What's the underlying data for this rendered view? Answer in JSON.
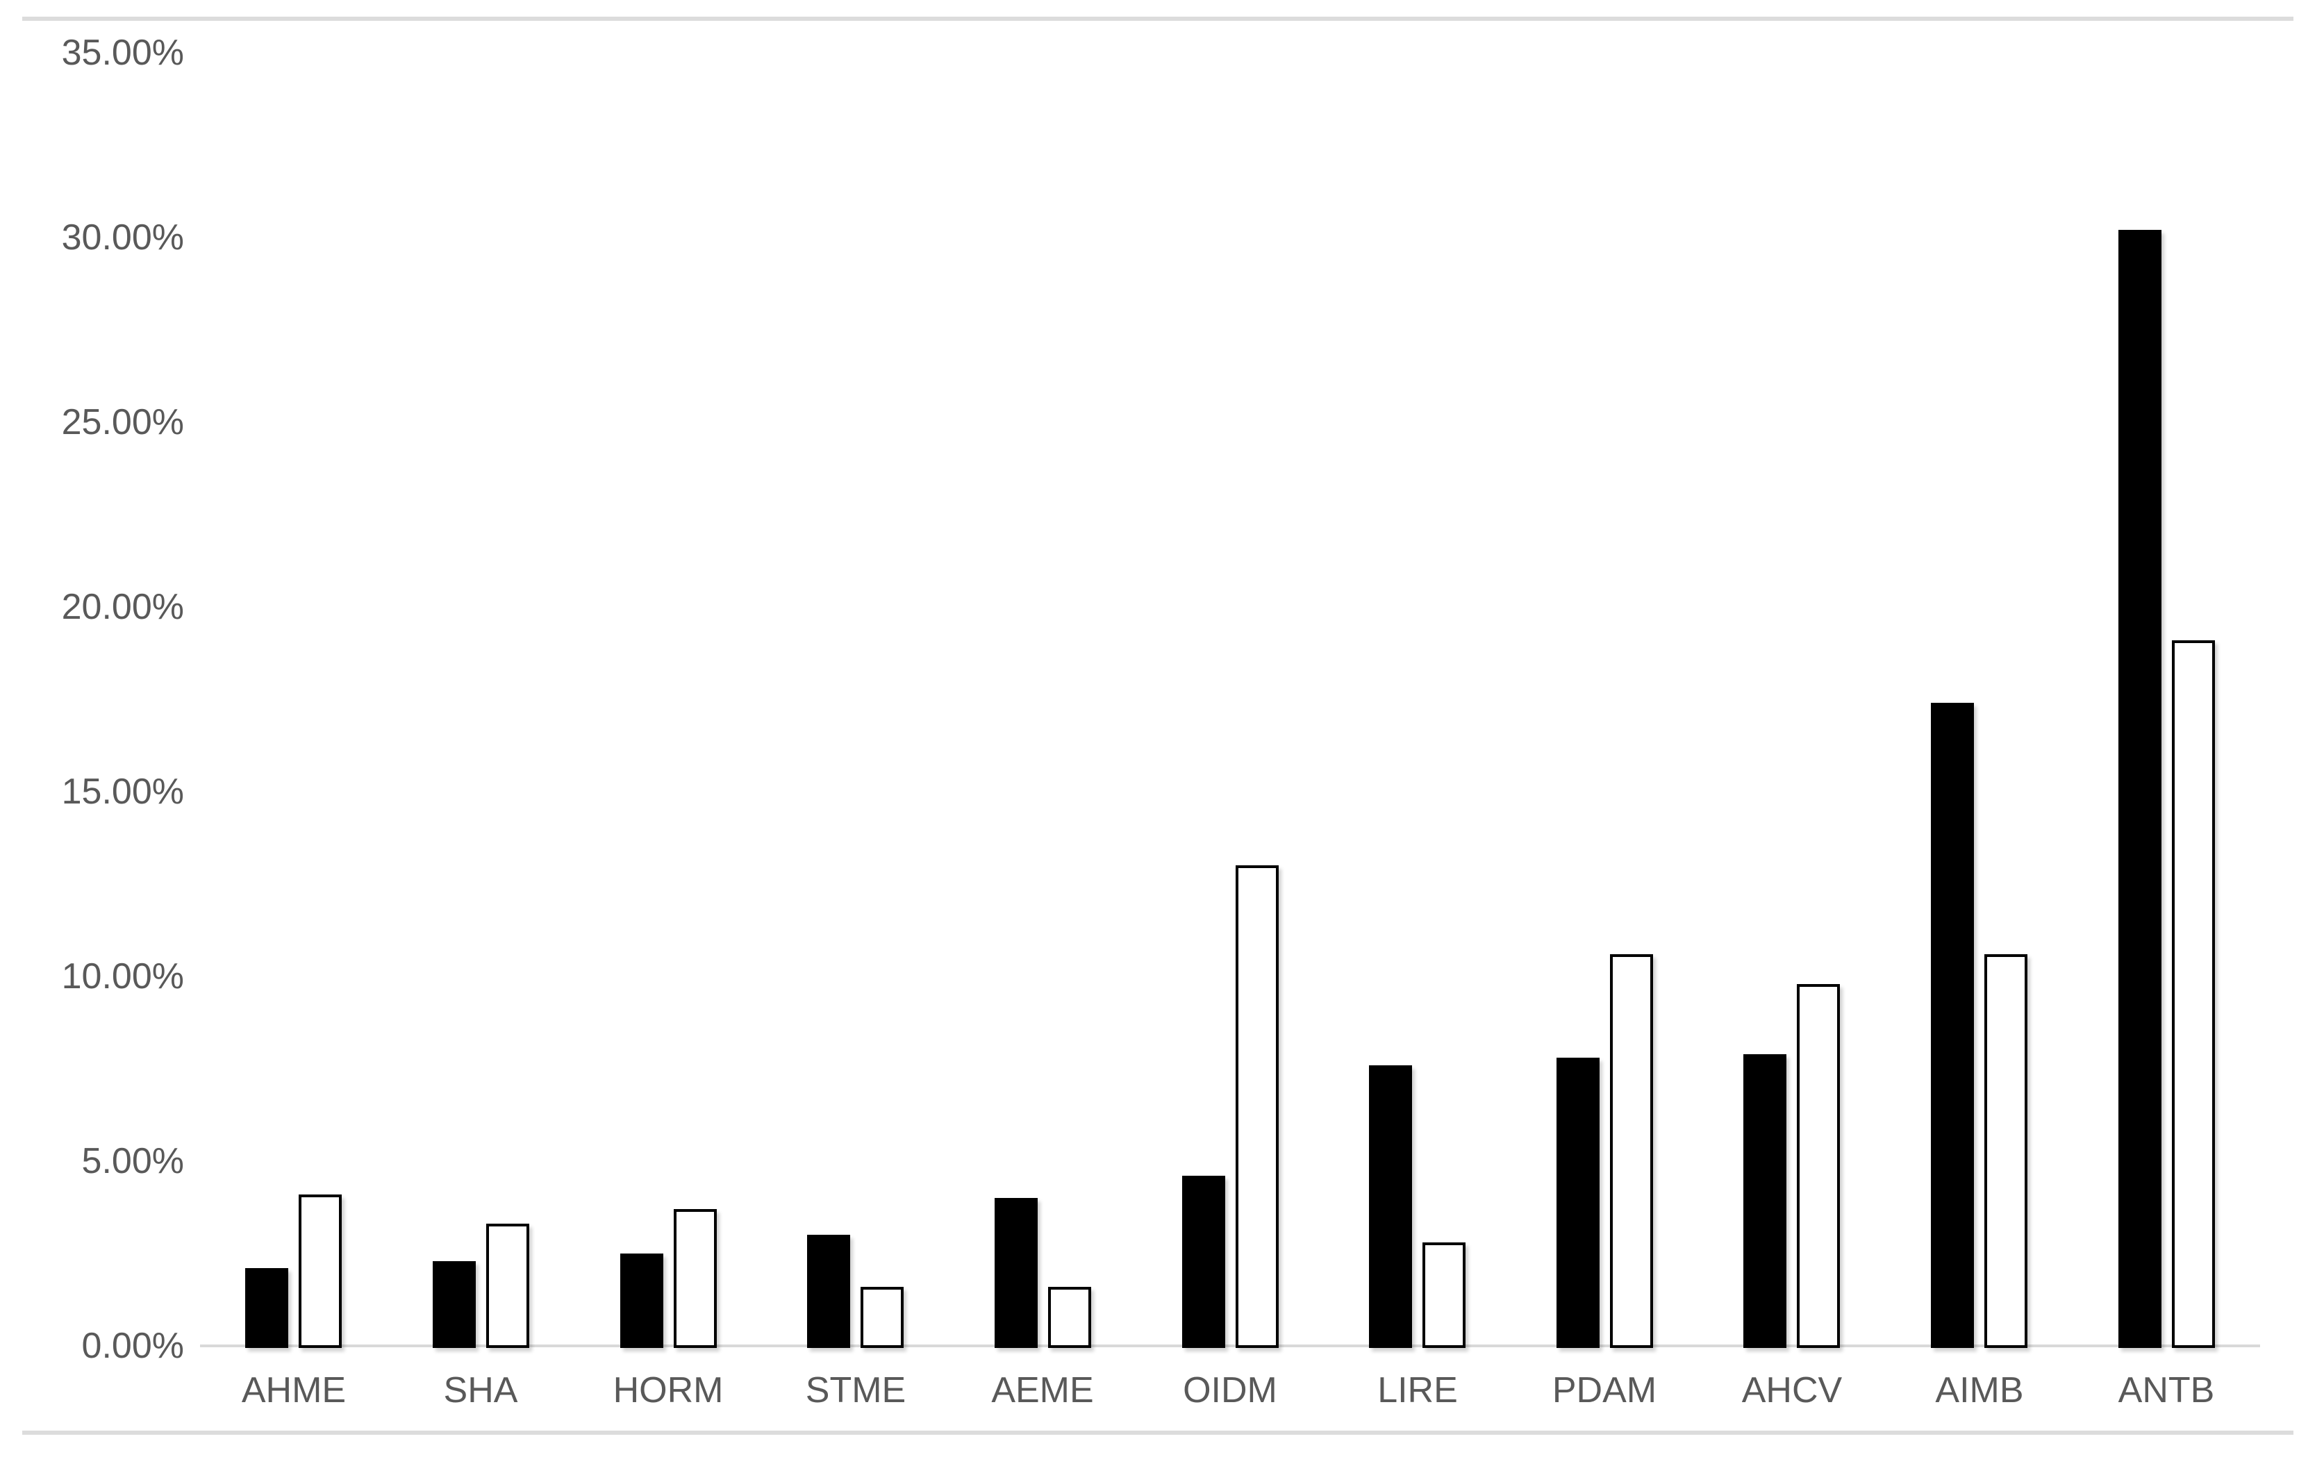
{
  "chart_data": {
    "type": "bar",
    "title": "",
    "xlabel": "",
    "ylabel": "",
    "categories": [
      "AHME",
      "SHA",
      "HORM",
      "STME",
      "AEME",
      "OIDM",
      "LIRE",
      "PDAM",
      "AHCV",
      "AIMB",
      "ANTB"
    ],
    "series": [
      {
        "name": "filled-black-series",
        "style": "solid-black",
        "values": [
          2.1,
          2.3,
          2.5,
          3.0,
          4.0,
          4.6,
          7.6,
          7.8,
          7.9,
          17.4,
          30.2
        ]
      },
      {
        "name": "outlined-white-series",
        "style": "white-with-black-outline",
        "values": [
          4.1,
          3.3,
          3.7,
          1.6,
          1.6,
          13.0,
          2.8,
          10.6,
          9.8,
          10.6,
          19.1
        ]
      }
    ],
    "unit": "%",
    "ylim": [
      0,
      35
    ],
    "y_tick_step": 5,
    "y_tick_labels": [
      "0.00%",
      "5.00%",
      "10.00%",
      "15.00%",
      "20.00%",
      "25.00%",
      "30.00%",
      "35.00%"
    ],
    "grid": false,
    "legend": "none"
  },
  "colors": {
    "background": "#ffffff",
    "axis_line": "#d9d9d9",
    "frame_line": "#dcdcdc",
    "label_text": "#595959",
    "bar_fill_dark": "#000000",
    "bar_fill_light": "#ffffff",
    "bar_outline": "#000000"
  }
}
